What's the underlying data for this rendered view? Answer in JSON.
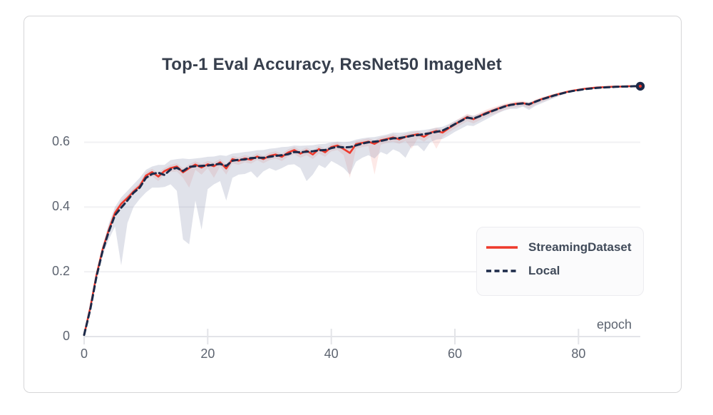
{
  "colors": {
    "background": "#ffffff",
    "card_border": "#d6d6d8",
    "grid": "#f0f0f3",
    "axis": "#e3e4e8",
    "tick_text": "#5d6470",
    "title_text": "#373f4d",
    "legend_bg": "#fbfbfc",
    "legend_border": "#ececf0",
    "legend_text": "#414b5a",
    "streaming_red": "#ee392b",
    "local_navy": "#1c2a49"
  },
  "chart_data": {
    "type": "line",
    "title": "Top-1 Eval Accuracy, ResNet50 ImageNet",
    "xlabel": "epoch",
    "ylabel": "",
    "xlim": [
      0,
      90
    ],
    "ylim": [
      0,
      0.8
    ],
    "x_ticks": [
      0,
      20,
      40,
      60,
      80
    ],
    "y_ticks": [
      0,
      0.2,
      0.4,
      0.6
    ],
    "grid": "horizontal",
    "legend_position": "lower right",
    "x": [
      0,
      1,
      2,
      3,
      4,
      5,
      6,
      7,
      8,
      9,
      10,
      11,
      12,
      13,
      14,
      15,
      16,
      17,
      18,
      19,
      20,
      21,
      22,
      23,
      24,
      25,
      26,
      27,
      28,
      29,
      30,
      31,
      32,
      33,
      34,
      35,
      36,
      37,
      38,
      39,
      40,
      41,
      42,
      43,
      44,
      45,
      46,
      47,
      48,
      49,
      50,
      51,
      52,
      53,
      54,
      55,
      56,
      57,
      58,
      59,
      60,
      61,
      62,
      63,
      64,
      65,
      66,
      67,
      68,
      69,
      70,
      71,
      72,
      73,
      74,
      75,
      76,
      77,
      78,
      79,
      80,
      81,
      82,
      83,
      84,
      85,
      86,
      87,
      88,
      89,
      90
    ],
    "series": [
      {
        "name": "StreamingDataset",
        "color": "#ee392b",
        "style": "solid",
        "line_width": 2.6,
        "band_color": "#ee4a3a",
        "band_opacity": 0.12,
        "values": [
          0.005,
          0.09,
          0.19,
          0.27,
          0.33,
          0.382,
          0.41,
          0.428,
          0.448,
          0.465,
          0.497,
          0.508,
          0.494,
          0.511,
          0.52,
          0.525,
          0.507,
          0.52,
          0.531,
          0.522,
          0.532,
          0.526,
          0.538,
          0.519,
          0.548,
          0.543,
          0.55,
          0.546,
          0.556,
          0.548,
          0.558,
          0.562,
          0.555,
          0.568,
          0.576,
          0.565,
          0.574,
          0.562,
          0.579,
          0.569,
          0.585,
          0.59,
          0.579,
          0.567,
          0.594,
          0.598,
          0.602,
          0.595,
          0.606,
          0.61,
          0.615,
          0.609,
          0.617,
          0.621,
          0.625,
          0.617,
          0.629,
          0.635,
          0.63,
          0.643,
          0.655,
          0.667,
          0.678,
          0.671,
          0.681,
          0.69,
          0.697,
          0.704,
          0.711,
          0.716,
          0.719,
          0.721,
          0.716,
          0.726,
          0.733,
          0.739,
          0.745,
          0.75,
          0.755,
          0.759,
          0.762,
          0.765,
          0.767,
          0.769,
          0.77,
          0.771,
          0.772,
          0.772,
          0.773,
          0.773,
          0.773
        ],
        "band_lower": [
          0.005,
          0.085,
          0.185,
          0.262,
          0.32,
          0.37,
          0.4,
          0.418,
          0.44,
          0.455,
          0.485,
          0.495,
          0.48,
          0.5,
          0.508,
          0.51,
          0.49,
          0.46,
          0.515,
          0.5,
          0.52,
          0.49,
          0.525,
          0.5,
          0.535,
          0.53,
          0.538,
          0.534,
          0.545,
          0.535,
          0.545,
          0.55,
          0.542,
          0.555,
          0.563,
          0.552,
          0.56,
          0.548,
          0.565,
          0.555,
          0.572,
          0.576,
          0.56,
          0.49,
          0.58,
          0.585,
          0.588,
          0.5,
          0.592,
          0.598,
          0.602,
          0.595,
          0.604,
          0.58,
          0.612,
          0.602,
          0.616,
          0.58,
          0.616,
          0.63,
          0.642,
          0.654,
          0.665,
          0.658,
          0.668,
          0.678,
          0.685,
          0.692,
          0.7,
          0.705,
          0.708,
          0.712,
          0.705,
          0.716,
          0.724,
          0.731,
          0.738,
          0.744,
          0.75,
          0.755,
          0.759,
          0.765,
          0.767,
          0.769,
          0.77,
          0.771,
          0.772,
          0.772,
          0.773,
          0.773,
          0.773
        ],
        "band_upper": [
          0.005,
          0.095,
          0.195,
          0.278,
          0.34,
          0.392,
          0.42,
          0.438,
          0.458,
          0.475,
          0.507,
          0.518,
          0.506,
          0.521,
          0.53,
          0.535,
          0.52,
          0.532,
          0.541,
          0.534,
          0.542,
          0.538,
          0.548,
          0.532,
          0.558,
          0.553,
          0.56,
          0.556,
          0.566,
          0.558,
          0.568,
          0.572,
          0.565,
          0.578,
          0.586,
          0.575,
          0.584,
          0.574,
          0.589,
          0.58,
          0.595,
          0.6,
          0.59,
          0.58,
          0.604,
          0.608,
          0.612,
          0.606,
          0.616,
          0.62,
          0.625,
          0.619,
          0.627,
          0.631,
          0.635,
          0.628,
          0.639,
          0.645,
          0.64,
          0.653,
          0.665,
          0.677,
          0.688,
          0.681,
          0.691,
          0.7,
          0.707,
          0.713,
          0.719,
          0.724,
          0.727,
          0.728,
          0.724,
          0.732,
          0.739,
          0.744,
          0.75,
          0.754,
          0.758,
          0.762,
          0.765,
          0.767,
          0.769,
          0.771,
          0.772,
          0.772,
          0.773,
          0.773,
          0.774,
          0.774,
          0.774
        ]
      },
      {
        "name": "Local",
        "color": "#1c2a49",
        "style": "dashed",
        "line_width": 3,
        "band_color": "#8890ad",
        "band_opacity": 0.26,
        "end_marker": true,
        "values": [
          0.005,
          0.085,
          0.185,
          0.265,
          0.325,
          0.375,
          0.398,
          0.42,
          0.444,
          0.46,
          0.49,
          0.502,
          0.506,
          0.499,
          0.516,
          0.521,
          0.511,
          0.524,
          0.526,
          0.527,
          0.528,
          0.531,
          0.533,
          0.527,
          0.543,
          0.546,
          0.547,
          0.551,
          0.552,
          0.552,
          0.555,
          0.558,
          0.56,
          0.563,
          0.57,
          0.569,
          0.571,
          0.572,
          0.575,
          0.576,
          0.582,
          0.586,
          0.584,
          0.585,
          0.59,
          0.596,
          0.6,
          0.602,
          0.604,
          0.608,
          0.612,
          0.613,
          0.616,
          0.62,
          0.622,
          0.625,
          0.628,
          0.632,
          0.636,
          0.645,
          0.656,
          0.666,
          0.676,
          0.673,
          0.68,
          0.688,
          0.696,
          0.703,
          0.71,
          0.715,
          0.718,
          0.72,
          0.717,
          0.725,
          0.732,
          0.738,
          0.744,
          0.749,
          0.754,
          0.758,
          0.761,
          0.764,
          0.766,
          0.768,
          0.769,
          0.77,
          0.771,
          0.772,
          0.772,
          0.773,
          0.773
        ],
        "band_lower": [
          0.005,
          0.08,
          0.175,
          0.25,
          0.3,
          0.34,
          0.22,
          0.35,
          0.4,
          0.425,
          0.445,
          0.46,
          0.46,
          0.462,
          0.47,
          0.45,
          0.3,
          0.285,
          0.42,
          0.33,
          0.455,
          0.47,
          0.48,
          0.42,
          0.49,
          0.5,
          0.502,
          0.51,
          0.49,
          0.51,
          0.52,
          0.512,
          0.52,
          0.53,
          0.532,
          0.52,
          0.48,
          0.5,
          0.53,
          0.52,
          0.542,
          0.532,
          0.52,
          0.5,
          0.54,
          0.552,
          0.56,
          0.55,
          0.57,
          0.562,
          0.578,
          0.57,
          0.552,
          0.588,
          0.59,
          0.572,
          0.6,
          0.608,
          0.61,
          0.62,
          0.632,
          0.642,
          0.652,
          0.65,
          0.66,
          0.67,
          0.68,
          0.69,
          0.698,
          0.703,
          0.703,
          0.71,
          0.7,
          0.712,
          0.72,
          0.728,
          0.736,
          0.744,
          0.754,
          0.758,
          0.761,
          0.764,
          0.766,
          0.768,
          0.769,
          0.77,
          0.771,
          0.772,
          0.772,
          0.773,
          0.773
        ],
        "band_upper": [
          0.005,
          0.09,
          0.195,
          0.28,
          0.35,
          0.4,
          0.43,
          0.45,
          0.47,
          0.49,
          0.515,
          0.525,
          0.53,
          0.53,
          0.545,
          0.548,
          0.55,
          0.548,
          0.55,
          0.552,
          0.555,
          0.556,
          0.56,
          0.558,
          0.565,
          0.567,
          0.57,
          0.572,
          0.575,
          0.576,
          0.58,
          0.582,
          0.585,
          0.586,
          0.59,
          0.589,
          0.59,
          0.591,
          0.594,
          0.595,
          0.6,
          0.602,
          0.6,
          0.602,
          0.608,
          0.612,
          0.615,
          0.616,
          0.62,
          0.624,
          0.63,
          0.629,
          0.631,
          0.635,
          0.636,
          0.638,
          0.641,
          0.645,
          0.648,
          0.656,
          0.666,
          0.675,
          0.685,
          0.682,
          0.688,
          0.695,
          0.703,
          0.71,
          0.716,
          0.72,
          0.723,
          0.724,
          0.722,
          0.729,
          0.735,
          0.741,
          0.747,
          0.751,
          0.755,
          0.758,
          0.761,
          0.764,
          0.766,
          0.768,
          0.769,
          0.77,
          0.771,
          0.772,
          0.772,
          0.773,
          0.773
        ]
      }
    ]
  }
}
